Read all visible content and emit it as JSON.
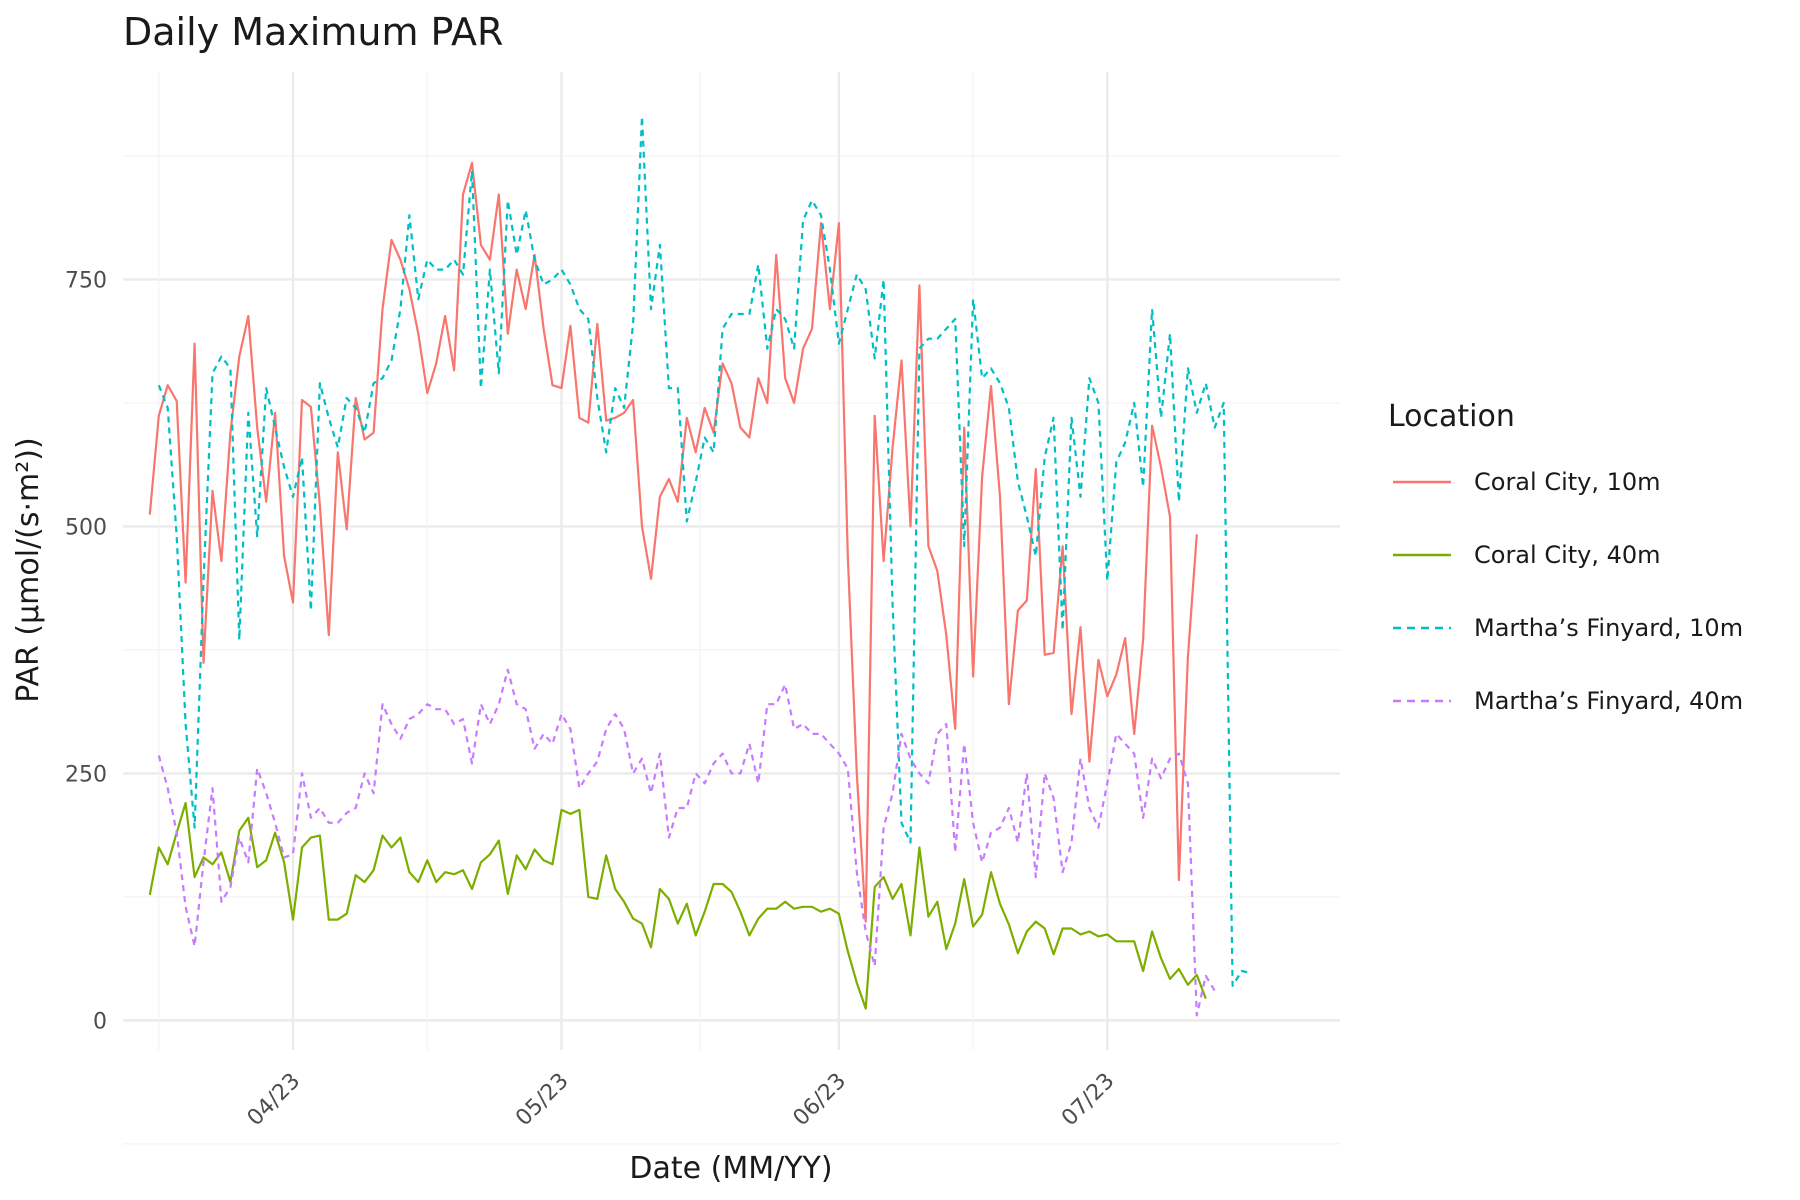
{
  "chart_data": {
    "type": "line",
    "title": "Daily Maximum PAR",
    "xlabel": "Date (MM/YY)",
    "ylabel": "PAR (µmol/(s·m²))",
    "x_ticks": [
      {
        "date": "2023-04-01",
        "label": "04/23"
      },
      {
        "date": "2023-05-01",
        "label": "05/23"
      },
      {
        "date": "2023-06-01",
        "label": "06/23"
      },
      {
        "date": "2023-07-01",
        "label": "07/23"
      }
    ],
    "y_ticks": [
      0,
      250,
      500,
      750
    ],
    "xlim": [
      "2023-03-13",
      "2023-07-27"
    ],
    "ylim": [
      -30,
      960
    ],
    "grid": true,
    "legend": {
      "title": "Location",
      "position": "right"
    },
    "series": [
      {
        "name": "Coral City, 10m",
        "color": "#F8766D",
        "dash": "solid",
        "start": "2023-03-16",
        "values": [
          512,
          612,
          643,
          627,
          443,
          685,
          362,
          536,
          465,
          595,
          672,
          713,
          600,
          525,
          615,
          470,
          423,
          628,
          621,
          521,
          390,
          575,
          497,
          630,
          588,
          595,
          720,
          790,
          770,
          740,
          695,
          635,
          665,
          713,
          658,
          836,
          868,
          785,
          770,
          836,
          695,
          760,
          720,
          775,
          700,
          643,
          640,
          703,
          610,
          605,
          705,
          607,
          610,
          615,
          628,
          500,
          447,
          530,
          548,
          525,
          610,
          575,
          620,
          595,
          665,
          645,
          600,
          590,
          650,
          625,
          775,
          650,
          625,
          680,
          700,
          807,
          720,
          807,
          470,
          250,
          100,
          612,
          465,
          580,
          668,
          500,
          744,
          480,
          455,
          390,
          295,
          600,
          348,
          550,
          642,
          530,
          320,
          415,
          425,
          558,
          370,
          372,
          480,
          310,
          398,
          262,
          365,
          328,
          350,
          387,
          290,
          385,
          602,
          560,
          510,
          142,
          368,
          492
        ]
      },
      {
        "name": "Coral City, 40m",
        "color": "#7CAE00",
        "dash": "solid",
        "start": "2023-03-16",
        "values": [
          127,
          175,
          158,
          190,
          220,
          145,
          165,
          158,
          170,
          140,
          192,
          205,
          155,
          162,
          190,
          160,
          102,
          175,
          185,
          187,
          102,
          102,
          108,
          147,
          140,
          152,
          187,
          175,
          185,
          150,
          140,
          162,
          140,
          150,
          148,
          152,
          133,
          160,
          168,
          182,
          128,
          167,
          153,
          173,
          162,
          158,
          213,
          209,
          213,
          125,
          123,
          167,
          133,
          120,
          103,
          98,
          74,
          133,
          123,
          98,
          118,
          86,
          110,
          138,
          138,
          130,
          110,
          86,
          103,
          113,
          113,
          120,
          113,
          115,
          115,
          110,
          113,
          108,
          70,
          38,
          12,
          135,
          145,
          123,
          138,
          86,
          175,
          105,
          120,
          72,
          98,
          143,
          95,
          107,
          150,
          118,
          97,
          68,
          90,
          100,
          93,
          67,
          93,
          93,
          87,
          90,
          85,
          87,
          80,
          80,
          80,
          50,
          90,
          63,
          42,
          52,
          36,
          46,
          22
        ]
      },
      {
        "name": "Martha’s Finyard, 10m",
        "color": "#00BFC4",
        "dash": "dashed",
        "start": "2023-03-17",
        "values": [
          643,
          620,
          490,
          300,
          195,
          445,
          655,
          672,
          660,
          385,
          615,
          490,
          640,
          600,
          560,
          530,
          570,
          415,
          645,
          610,
          580,
          630,
          620,
          595,
          645,
          650,
          668,
          720,
          815,
          730,
          770,
          760,
          760,
          770,
          755,
          860,
          640,
          760,
          655,
          830,
          775,
          820,
          770,
          745,
          750,
          760,
          745,
          720,
          710,
          630,
          575,
          640,
          620,
          705,
          915,
          720,
          785,
          640,
          640,
          505,
          545,
          590,
          575,
          700,
          715,
          715,
          715,
          765,
          680,
          720,
          710,
          680,
          810,
          830,
          815,
          760,
          685,
          720,
          755,
          740,
          670,
          750,
          420,
          200,
          180,
          680,
          690,
          690,
          700,
          710,
          480,
          730,
          650,
          660,
          645,
          620,
          545,
          510,
          470,
          570,
          610,
          395,
          610,
          530,
          650,
          625,
          445,
          565,
          585,
          625,
          540,
          720,
          610,
          695,
          525,
          660,
          615,
          645,
          600,
          625,
          35,
          50,
          48
        ]
      },
      {
        "name": "Martha’s Finyard, 40m",
        "color": "#C77CFF",
        "dash": "dashed",
        "start": "2023-03-17",
        "values": [
          268,
          235,
          190,
          115,
          75,
          160,
          235,
          120,
          135,
          185,
          160,
          255,
          230,
          200,
          165,
          168,
          250,
          205,
          215,
          200,
          200,
          210,
          215,
          250,
          230,
          320,
          300,
          285,
          305,
          310,
          320,
          315,
          315,
          300,
          305,
          260,
          320,
          300,
          320,
          355,
          320,
          315,
          275,
          290,
          280,
          310,
          295,
          235,
          250,
          262,
          295,
          310,
          295,
          250,
          265,
          230,
          270,
          185,
          215,
          215,
          250,
          240,
          260,
          270,
          250,
          250,
          280,
          240,
          320,
          320,
          340,
          295,
          300,
          290,
          290,
          280,
          270,
          255,
          150,
          90,
          55,
          195,
          230,
          290,
          265,
          250,
          240,
          290,
          300,
          170,
          280,
          200,
          160,
          190,
          195,
          215,
          180,
          250,
          145,
          250,
          225,
          150,
          180,
          265,
          215,
          195,
          240,
          290,
          280,
          270,
          205,
          265,
          245,
          265,
          270,
          240,
          5,
          45,
          30
        ]
      }
    ]
  }
}
